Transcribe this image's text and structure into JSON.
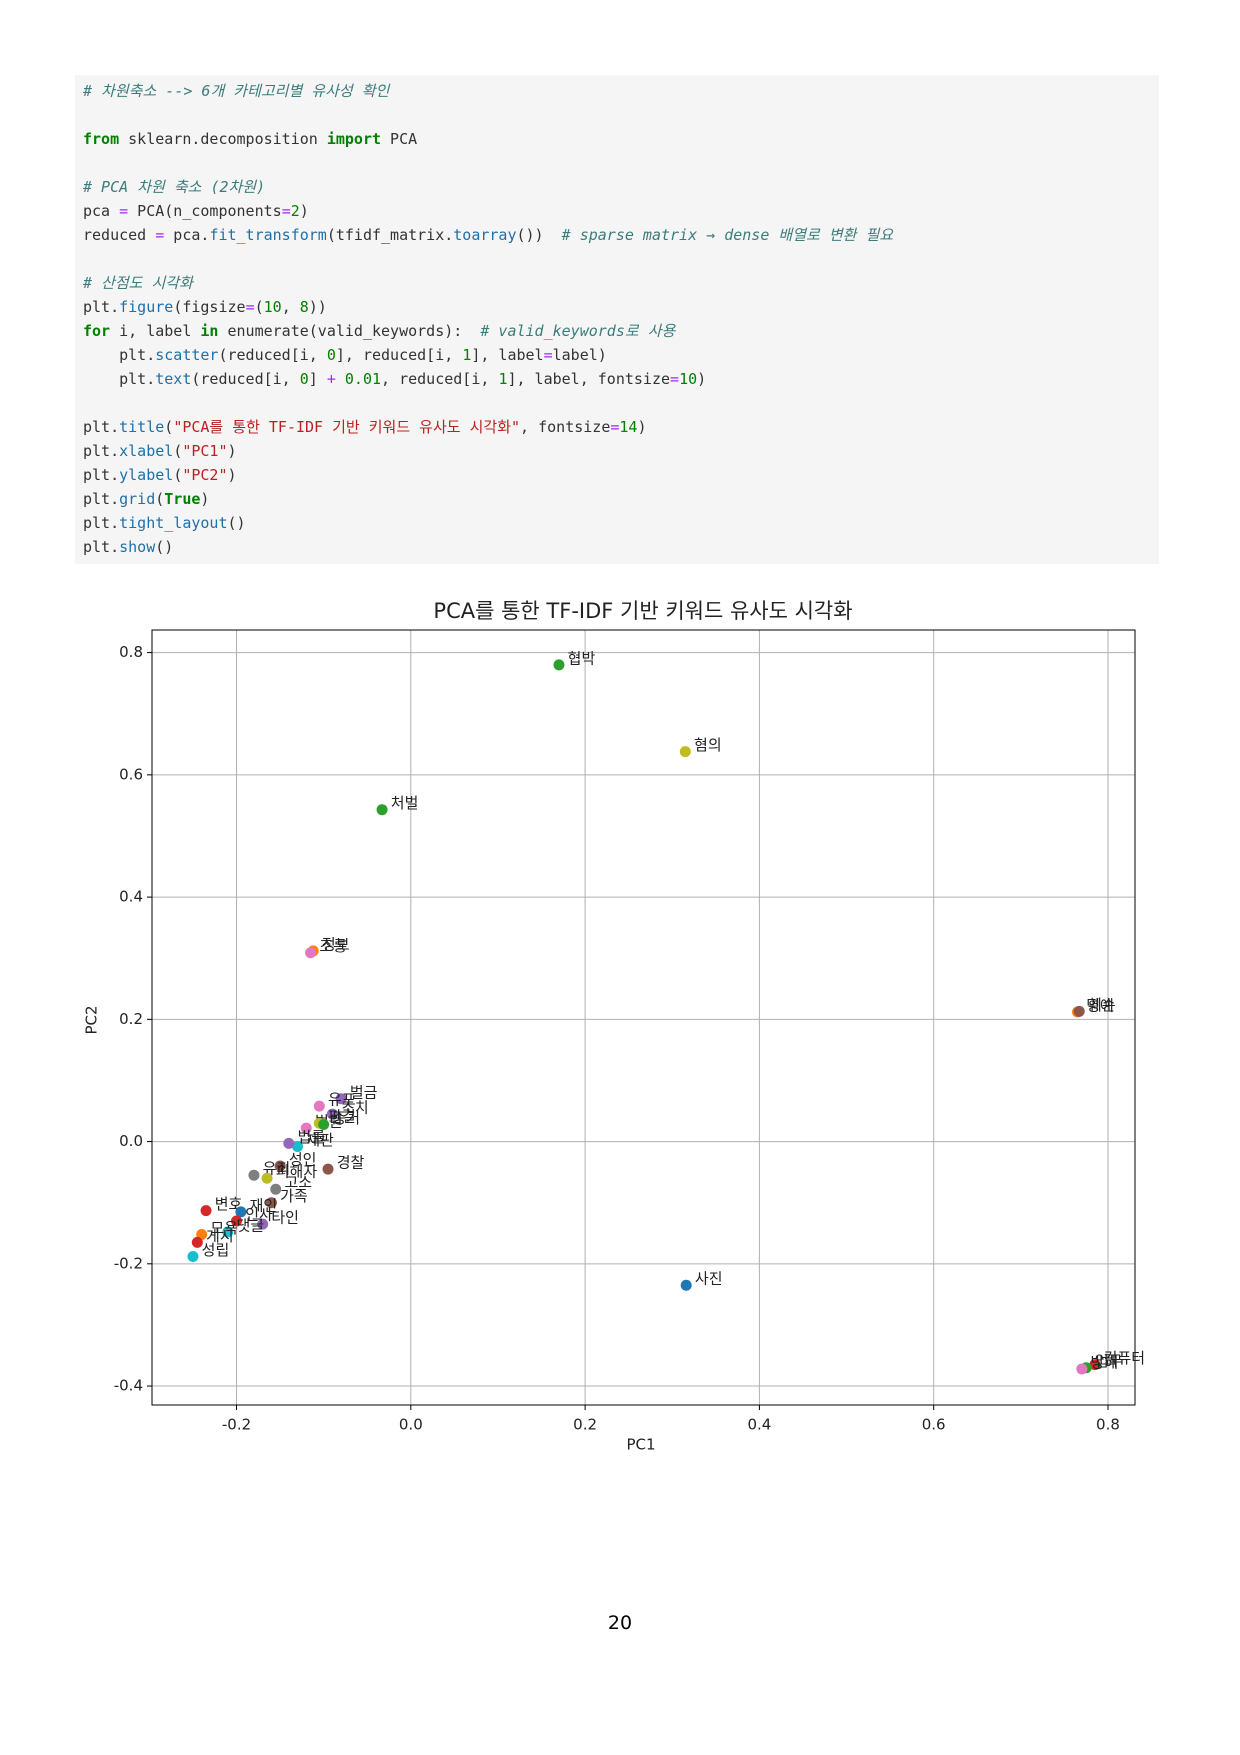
{
  "code": {
    "background": "#f5f5f5",
    "lines": [
      [
        {
          "text": "# 차원축소 --> 6개 카테고리별 유사성 확인",
          "color": "#3d7b7b",
          "italic": true
        }
      ],
      [],
      [
        {
          "text": "from",
          "color": "#008000",
          "bold": true
        },
        {
          "text": " sklearn.decomposition ",
          "color": "#333333"
        },
        {
          "text": "import",
          "color": "#008000",
          "bold": true
        },
        {
          "text": " PCA",
          "color": "#333333"
        }
      ],
      [],
      [
        {
          "text": "# PCA 차원 축소 (2차원)",
          "color": "#3d7b7b",
          "italic": true
        }
      ],
      [
        {
          "text": "pca ",
          "color": "#333333"
        },
        {
          "text": "=",
          "color": "#aa22ff"
        },
        {
          "text": " PCA(n_components",
          "color": "#333333"
        },
        {
          "text": "=",
          "color": "#aa22ff"
        },
        {
          "text": "2",
          "color": "#008000"
        },
        {
          "text": ")",
          "color": "#333333"
        }
      ],
      [
        {
          "text": "reduced ",
          "color": "#333333"
        },
        {
          "text": "=",
          "color": "#aa22ff"
        },
        {
          "text": " pca.",
          "color": "#333333"
        },
        {
          "text": "fit_transform",
          "color": "#1f6fa8"
        },
        {
          "text": "(tfidf_matrix.",
          "color": "#333333"
        },
        {
          "text": "toarray",
          "color": "#1f6fa8"
        },
        {
          "text": "())  ",
          "color": "#333333"
        },
        {
          "text": "# sparse matrix → dense 배열로 변환 필요",
          "color": "#3d7b7b",
          "italic": true
        }
      ],
      [],
      [
        {
          "text": "# 산점도 시각화",
          "color": "#3d7b7b",
          "italic": true
        }
      ],
      [
        {
          "text": "plt.",
          "color": "#333333"
        },
        {
          "text": "figure",
          "color": "#1f6fa8"
        },
        {
          "text": "(figsize",
          "color": "#333333"
        },
        {
          "text": "=",
          "color": "#aa22ff"
        },
        {
          "text": "(",
          "color": "#333333"
        },
        {
          "text": "10",
          "color": "#008000"
        },
        {
          "text": ", ",
          "color": "#333333"
        },
        {
          "text": "8",
          "color": "#008000"
        },
        {
          "text": "))",
          "color": "#333333"
        }
      ],
      [
        {
          "text": "for",
          "color": "#008000",
          "bold": true
        },
        {
          "text": " i, label ",
          "color": "#333333"
        },
        {
          "text": "in",
          "color": "#008000",
          "bold": true
        },
        {
          "text": " enumerate(valid_keywords):  ",
          "color": "#333333"
        },
        {
          "text": "# valid_keywords로 사용",
          "color": "#3d7b7b",
          "italic": true
        }
      ],
      [
        {
          "text": "    plt.",
          "color": "#333333"
        },
        {
          "text": "scatter",
          "color": "#1f6fa8"
        },
        {
          "text": "(reduced[i, ",
          "color": "#333333"
        },
        {
          "text": "0",
          "color": "#008000"
        },
        {
          "text": "], reduced[i, ",
          "color": "#333333"
        },
        {
          "text": "1",
          "color": "#008000"
        },
        {
          "text": "], label",
          "color": "#333333"
        },
        {
          "text": "=",
          "color": "#aa22ff"
        },
        {
          "text": "label)",
          "color": "#333333"
        }
      ],
      [
        {
          "text": "    plt.",
          "color": "#333333"
        },
        {
          "text": "text",
          "color": "#1f6fa8"
        },
        {
          "text": "(reduced[i, ",
          "color": "#333333"
        },
        {
          "text": "0",
          "color": "#008000"
        },
        {
          "text": "] ",
          "color": "#333333"
        },
        {
          "text": "+",
          "color": "#aa22ff"
        },
        {
          "text": " ",
          "color": "#333333"
        },
        {
          "text": "0.01",
          "color": "#008000"
        },
        {
          "text": ", reduced[i, ",
          "color": "#333333"
        },
        {
          "text": "1",
          "color": "#008000"
        },
        {
          "text": "], label, fontsize",
          "color": "#333333"
        },
        {
          "text": "=",
          "color": "#aa22ff"
        },
        {
          "text": "10",
          "color": "#008000"
        },
        {
          "text": ")",
          "color": "#333333"
        }
      ],
      [],
      [
        {
          "text": "plt.",
          "color": "#333333"
        },
        {
          "text": "title",
          "color": "#1f6fa8"
        },
        {
          "text": "(",
          "color": "#333333"
        },
        {
          "text": "\"PCA를 통한 TF-IDF 기반 키워드 유사도 시각화\"",
          "color": "#ba2121"
        },
        {
          "text": ", fontsize",
          "color": "#333333"
        },
        {
          "text": "=",
          "color": "#aa22ff"
        },
        {
          "text": "14",
          "color": "#008000"
        },
        {
          "text": ")",
          "color": "#333333"
        }
      ],
      [
        {
          "text": "plt.",
          "color": "#333333"
        },
        {
          "text": "xlabel",
          "color": "#1f6fa8"
        },
        {
          "text": "(",
          "color": "#333333"
        },
        {
          "text": "\"PC1\"",
          "color": "#ba2121"
        },
        {
          "text": ")",
          "color": "#333333"
        }
      ],
      [
        {
          "text": "plt.",
          "color": "#333333"
        },
        {
          "text": "ylabel",
          "color": "#1f6fa8"
        },
        {
          "text": "(",
          "color": "#333333"
        },
        {
          "text": "\"PC2\"",
          "color": "#ba2121"
        },
        {
          "text": ")",
          "color": "#333333"
        }
      ],
      [
        {
          "text": "plt.",
          "color": "#333333"
        },
        {
          "text": "grid",
          "color": "#1f6fa8"
        },
        {
          "text": "(",
          "color": "#333333"
        },
        {
          "text": "True",
          "color": "#008000",
          "bold": true
        },
        {
          "text": ")",
          "color": "#333333"
        }
      ],
      [
        {
          "text": "plt.",
          "color": "#333333"
        },
        {
          "text": "tight_layout",
          "color": "#1f6fa8"
        },
        {
          "text": "()",
          "color": "#333333"
        }
      ],
      [
        {
          "text": "plt.",
          "color": "#333333"
        },
        {
          "text": "show",
          "color": "#1f6fa8"
        },
        {
          "text": "()",
          "color": "#333333"
        }
      ]
    ]
  },
  "chart_data": {
    "type": "scatter",
    "title": "PCA를 통한 TF-IDF 기반 키워드 유사도 시각화",
    "x_label": "PC1",
    "y_label": "PC2",
    "grid": true,
    "xlim": [
      -0.297,
      0.831
    ],
    "ylim": [
      -0.431,
      0.837
    ],
    "xticks": [
      -0.2,
      {
        "value": 0,
        "label": "0.0"
      },
      0.2,
      0.4,
      0.6,
      0.8
    ],
    "yticks": [
      -0.4,
      -0.2,
      {
        "value": 0,
        "label": "0.0"
      },
      0.2,
      0.4,
      0.6,
      0.8
    ],
    "labels": [
      "협박",
      "혐의",
      "처벌",
      "정보",
      "조롱",
      "명예",
      "훼손",
      "사진",
      "컴퓨터",
      "업무",
      "방해",
      "벌금",
      "유포",
      "조치",
      "법원",
      "판결",
      "증거",
      "재판",
      "법률",
      "경찰",
      "성인",
      "유죄",
      "피해자",
      "고소",
      "가족",
      "변호",
      "재인",
      "인사",
      "타인",
      "댓글",
      "모욕",
      "게시",
      "성립"
    ],
    "x": [
      0.17,
      0.315,
      -0.033,
      -0.112,
      -0.115,
      0.765,
      0.767,
      0.316,
      0.785,
      0.775,
      0.77,
      -0.08,
      -0.105,
      -0.09,
      -0.12,
      -0.105,
      -0.1,
      -0.13,
      -0.14,
      -0.095,
      -0.15,
      -0.18,
      -0.165,
      -0.155,
      -0.16,
      -0.235,
      -0.195,
      -0.2,
      -0.17,
      -0.21,
      -0.24,
      -0.245,
      -0.25
    ],
    "values": [
      0.78,
      0.638,
      0.543,
      0.312,
      0.309,
      0.212,
      0.213,
      -0.235,
      -0.365,
      -0.37,
      -0.372,
      0.07,
      0.058,
      0.045,
      0.022,
      0.03,
      0.028,
      -0.008,
      -0.003,
      -0.045,
      -0.04,
      -0.055,
      -0.06,
      -0.078,
      -0.1,
      -0.113,
      -0.115,
      -0.13,
      -0.135,
      -0.148,
      -0.152,
      -0.165,
      -0.188
    ],
    "colors": [
      "#2ca02c",
      "#bcbd22",
      "#2ca02c",
      "#ff7f0e",
      "#e377c2",
      "#ff7f0e",
      "#8c564b",
      "#1f77b4",
      "#d62728",
      "#2ca02c",
      "#e377c2",
      "#9467bd",
      "#e377c2",
      "#9467bd",
      "#e377c2",
      "#bcbd22",
      "#2ca02c",
      "#17becf",
      "#9467bd",
      "#8c564b",
      "#8c564b",
      "#7f7f7f",
      "#bcbd22",
      "#7f7f7f",
      "#8c564b",
      "#d62728",
      "#1f77b4",
      "#d62728",
      "#9467bd",
      "#17becf",
      "#ff7f0e",
      "#d62728",
      "#17becf"
    ]
  },
  "footer": {
    "page_number": "20"
  }
}
